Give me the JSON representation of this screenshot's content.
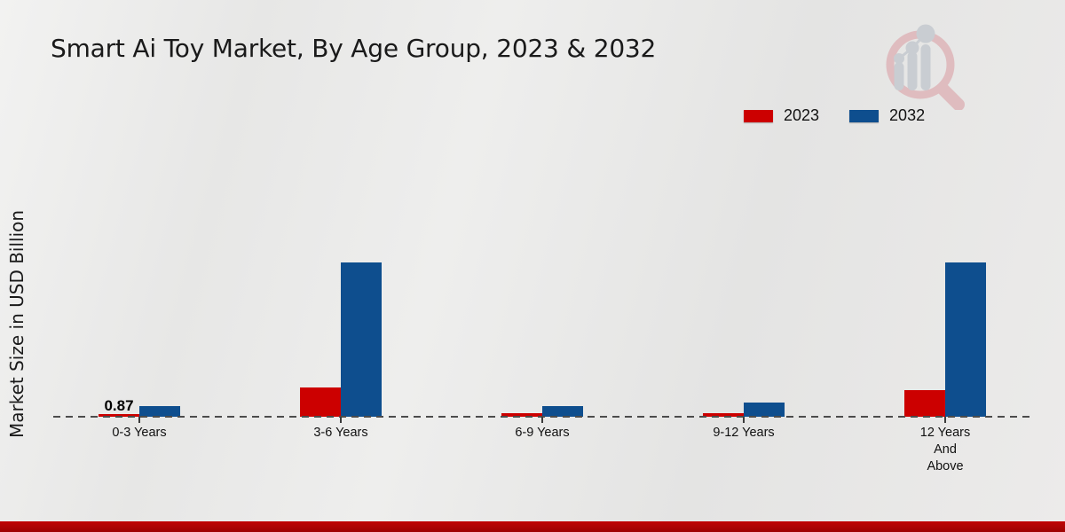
{
  "title": "Smart Ai Toy Market, By Age Group, 2023 & 2032",
  "legend": {
    "items": [
      {
        "label": "2023",
        "color": "#cc0000"
      },
      {
        "label": "2032",
        "color": "#0e4e8e"
      }
    ]
  },
  "chart_data": {
    "type": "bar",
    "title": "Smart Ai Toy Market, By Age Group, 2023 & 2032",
    "categories": [
      "0-3 Years",
      "3-6 Years",
      "6-9 Years",
      "9-12 Years",
      "12 Years And Above"
    ],
    "series": [
      {
        "name": "2023",
        "color": "#cc0000",
        "values": [
          0.87,
          9.6,
          1.2,
          1.2,
          8.8
        ]
      },
      {
        "name": "2032",
        "color": "#0e4e8e",
        "values": [
          3.5,
          50.4,
          3.4,
          4.6,
          50.4
        ]
      }
    ],
    "xlabel": "",
    "ylabel": "Market Size in USD Billion",
    "ylim": [
      0,
      55
    ],
    "grid": false,
    "axis_ticks_visible": false,
    "baseline_style": "dashed",
    "legend_position": "top-right",
    "annotations": [
      {
        "series": "2023",
        "category_index": 0,
        "text": "0.87"
      }
    ]
  },
  "footer": {
    "accent_color": "#b00404"
  },
  "watermark": {
    "icon": "magnifier-barchart-logo",
    "ring_color": "#dfbcbf",
    "glyph_color": "#c9cdd2"
  }
}
